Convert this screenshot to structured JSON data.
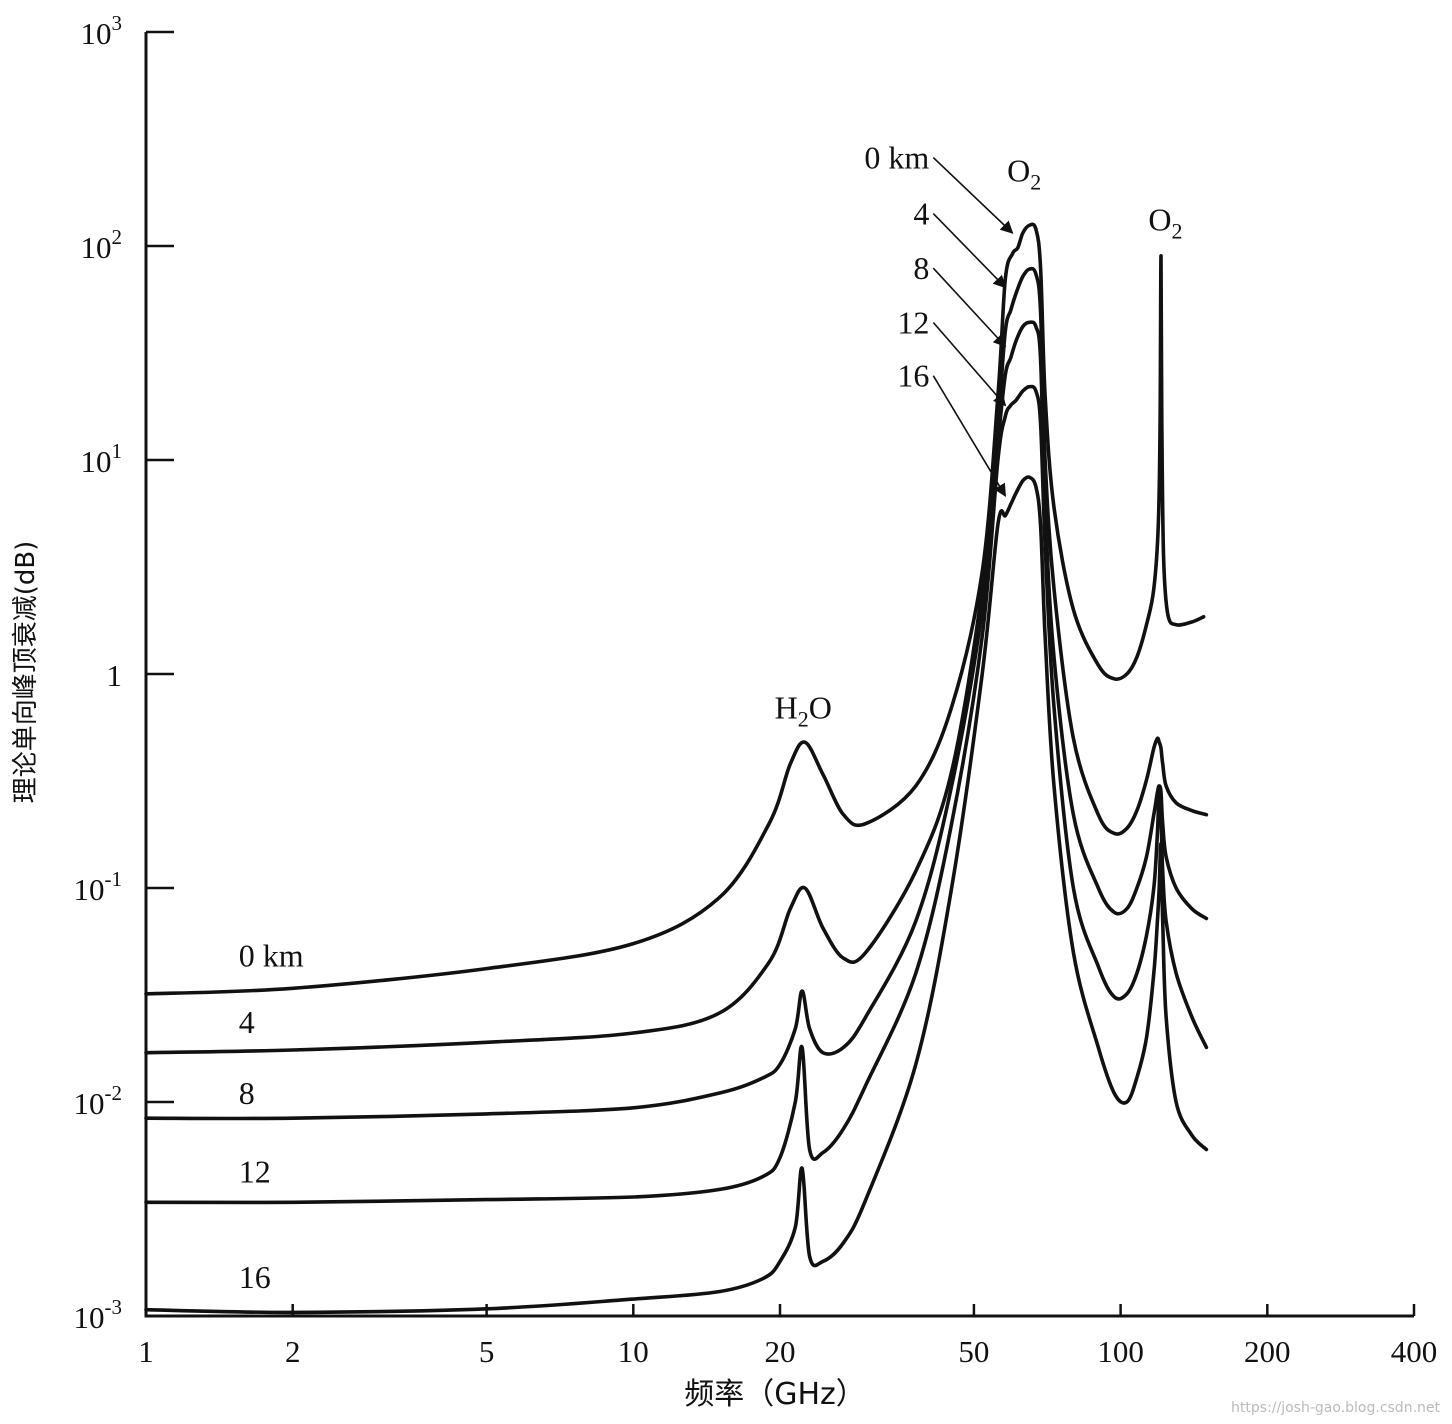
{
  "chart_data": {
    "type": "line",
    "xlabel": "频率（GHz）",
    "ylabel": "理论单向峰顶衰减(dB)",
    "xscale": "log",
    "yscale": "log",
    "xlim": [
      1,
      400
    ],
    "ylim": [
      0.001,
      1000
    ],
    "x_ticks": [
      {
        "value": 1,
        "label": "1"
      },
      {
        "value": 2,
        "label": "2"
      },
      {
        "value": 5,
        "label": "5"
      },
      {
        "value": 10,
        "label": "10"
      },
      {
        "value": 20,
        "label": "20"
      },
      {
        "value": 50,
        "label": "50"
      },
      {
        "value": 100,
        "label": "100"
      },
      {
        "value": 200,
        "label": "200"
      },
      {
        "value": 400,
        "label": "400"
      }
    ],
    "y_ticks": [
      {
        "value": 0.001,
        "base": "10",
        "exp": "-3"
      },
      {
        "value": 0.01,
        "base": "10",
        "exp": "-2"
      },
      {
        "value": 0.1,
        "base": "10",
        "exp": "-1"
      },
      {
        "value": 1,
        "base": "1",
        "exp": ""
      },
      {
        "value": 10,
        "base": "10",
        "exp": "1"
      },
      {
        "value": 100,
        "base": "10",
        "exp": "2"
      },
      {
        "value": 1000,
        "base": "10",
        "exp": "3"
      }
    ],
    "series": [
      {
        "name": "0 km",
        "points": [
          [
            1,
            0.032
          ],
          [
            2,
            0.034
          ],
          [
            5,
            0.042
          ],
          [
            10,
            0.055
          ],
          [
            15,
            0.09
          ],
          [
            19,
            0.2
          ],
          [
            21,
            0.38
          ],
          [
            22.5,
            0.48
          ],
          [
            24.5,
            0.34
          ],
          [
            27,
            0.22
          ],
          [
            30,
            0.2
          ],
          [
            38,
            0.3
          ],
          [
            45,
            0.7
          ],
          [
            52,
            3
          ],
          [
            56,
            20
          ],
          [
            58,
            70
          ],
          [
            60,
            92
          ],
          [
            61.5,
            98
          ],
          [
            63,
            115
          ],
          [
            65,
            125
          ],
          [
            67,
            120
          ],
          [
            68.5,
            80
          ],
          [
            70,
            20
          ],
          [
            73,
            6
          ],
          [
            80,
            2
          ],
          [
            90,
            1.1
          ],
          [
            97,
            0.95
          ],
          [
            103,
            1.0
          ],
          [
            108,
            1.2
          ],
          [
            113,
            1.7
          ],
          [
            117,
            2.5
          ],
          [
            119.5,
            5
          ],
          [
            120.5,
            15
          ],
          [
            121,
            90
          ],
          [
            121.5,
            15
          ],
          [
            122.5,
            3.5
          ],
          [
            125,
            1.9
          ],
          [
            130,
            1.7
          ],
          [
            140,
            1.75
          ],
          [
            148,
            1.85
          ]
        ]
      },
      {
        "name": "4",
        "points": [
          [
            1,
            0.017
          ],
          [
            2,
            0.0175
          ],
          [
            5,
            0.019
          ],
          [
            10,
            0.021
          ],
          [
            15,
            0.026
          ],
          [
            19,
            0.045
          ],
          [
            21,
            0.08
          ],
          [
            22.5,
            0.1
          ],
          [
            24.5,
            0.065
          ],
          [
            27,
            0.047
          ],
          [
            30,
            0.05
          ],
          [
            38,
            0.12
          ],
          [
            45,
            0.35
          ],
          [
            52,
            2.5
          ],
          [
            56,
            15
          ],
          [
            58,
            40
          ],
          [
            59.5,
            50
          ],
          [
            61,
            60
          ],
          [
            63,
            72
          ],
          [
            65,
            78
          ],
          [
            67,
            74
          ],
          [
            68.5,
            50
          ],
          [
            70,
            10
          ],
          [
            73,
            2.5
          ],
          [
            80,
            0.5
          ],
          [
            90,
            0.22
          ],
          [
            97,
            0.18
          ],
          [
            103,
            0.19
          ],
          [
            108,
            0.23
          ],
          [
            113,
            0.32
          ],
          [
            117,
            0.45
          ],
          [
            119,
            0.5
          ],
          [
            120,
            0.48
          ],
          [
            121,
            0.45
          ],
          [
            122,
            0.38
          ],
          [
            124,
            0.3
          ],
          [
            130,
            0.25
          ],
          [
            140,
            0.23
          ],
          [
            150,
            0.22
          ]
        ]
      },
      {
        "name": "8",
        "points": [
          [
            1,
            0.0084
          ],
          [
            2,
            0.0084
          ],
          [
            5,
            0.0088
          ],
          [
            10,
            0.0094
          ],
          [
            15,
            0.011
          ],
          [
            18.5,
            0.013
          ],
          [
            20,
            0.015
          ],
          [
            21.5,
            0.022
          ],
          [
            22.2,
            0.033
          ],
          [
            23,
            0.022
          ],
          [
            24.5,
            0.017
          ],
          [
            27,
            0.018
          ],
          [
            30,
            0.025
          ],
          [
            38,
            0.07
          ],
          [
            45,
            0.3
          ],
          [
            52,
            2
          ],
          [
            56,
            12
          ],
          [
            58,
            25
          ],
          [
            59.5,
            30
          ],
          [
            61,
            36
          ],
          [
            63,
            42
          ],
          [
            65,
            44
          ],
          [
            67,
            42
          ],
          [
            68.5,
            30
          ],
          [
            70,
            6
          ],
          [
            73,
            1.2
          ],
          [
            80,
            0.22
          ],
          [
            90,
            0.1
          ],
          [
            97,
            0.077
          ],
          [
            103,
            0.08
          ],
          [
            108,
            0.1
          ],
          [
            113,
            0.14
          ],
          [
            117,
            0.22
          ],
          [
            119,
            0.28
          ],
          [
            120,
            0.3
          ],
          [
            121,
            0.28
          ],
          [
            122,
            0.2
          ],
          [
            124,
            0.14
          ],
          [
            130,
            0.1
          ],
          [
            140,
            0.08
          ],
          [
            150,
            0.072
          ]
        ]
      },
      {
        "name": "12",
        "points": [
          [
            1,
            0.0034
          ],
          [
            2,
            0.0034
          ],
          [
            5,
            0.0035
          ],
          [
            10,
            0.0036
          ],
          [
            15,
            0.0039
          ],
          [
            18.5,
            0.0045
          ],
          [
            20,
            0.0055
          ],
          [
            21.5,
            0.01
          ],
          [
            22.2,
            0.018
          ],
          [
            23,
            0.006
          ],
          [
            24.5,
            0.0058
          ],
          [
            27,
            0.0075
          ],
          [
            30,
            0.012
          ],
          [
            38,
            0.04
          ],
          [
            45,
            0.2
          ],
          [
            52,
            1.5
          ],
          [
            56,
            10
          ],
          [
            58,
            16
          ],
          [
            59.5,
            18
          ],
          [
            61,
            19
          ],
          [
            63,
            21
          ],
          [
            65,
            22
          ],
          [
            67,
            21
          ],
          [
            68.5,
            15
          ],
          [
            70,
            4
          ],
          [
            73,
            0.7
          ],
          [
            80,
            0.1
          ],
          [
            90,
            0.043
          ],
          [
            97,
            0.031
          ],
          [
            103,
            0.032
          ],
          [
            108,
            0.04
          ],
          [
            113,
            0.06
          ],
          [
            117,
            0.1
          ],
          [
            119,
            0.18
          ],
          [
            120,
            0.28
          ],
          [
            121,
            0.22
          ],
          [
            122,
            0.12
          ],
          [
            124,
            0.07
          ],
          [
            130,
            0.04
          ],
          [
            140,
            0.025
          ],
          [
            150,
            0.018
          ]
        ]
      },
      {
        "name": "16",
        "points": [
          [
            1,
            0.00107
          ],
          [
            2,
            0.00104
          ],
          [
            5,
            0.00108
          ],
          [
            10,
            0.0012
          ],
          [
            15,
            0.0013
          ],
          [
            18.5,
            0.0015
          ],
          [
            20,
            0.0018
          ],
          [
            21.5,
            0.0026
          ],
          [
            22.2,
            0.0049
          ],
          [
            23,
            0.0019
          ],
          [
            24.5,
            0.0018
          ],
          [
            27,
            0.0022
          ],
          [
            30,
            0.0035
          ],
          [
            38,
            0.015
          ],
          [
            45,
            0.1
          ],
          [
            52,
            1
          ],
          [
            56,
            5
          ],
          [
            58,
            5.5
          ],
          [
            59.5,
            6.2
          ],
          [
            61,
            7
          ],
          [
            63,
            8
          ],
          [
            65,
            8.3
          ],
          [
            67,
            7.5
          ],
          [
            68.5,
            5
          ],
          [
            70,
            1.5
          ],
          [
            73,
            0.3
          ],
          [
            80,
            0.05
          ],
          [
            90,
            0.018
          ],
          [
            97,
            0.011
          ],
          [
            103,
            0.01
          ],
          [
            108,
            0.013
          ],
          [
            113,
            0.02
          ],
          [
            117,
            0.04
          ],
          [
            119,
            0.07
          ],
          [
            120,
            0.1
          ],
          [
            121,
            0.16
          ],
          [
            122,
            0.07
          ],
          [
            124,
            0.025
          ],
          [
            130,
            0.01
          ],
          [
            140,
            0.007
          ],
          [
            150,
            0.006
          ]
        ]
      }
    ],
    "left_labels": [
      {
        "text": "0 km",
        "x": 1.55,
        "y": 0.043
      },
      {
        "text": "4",
        "x": 1.55,
        "y": 0.021
      },
      {
        "text": "8",
        "x": 1.55,
        "y": 0.0098
      },
      {
        "text": "12",
        "x": 1.55,
        "y": 0.0042
      },
      {
        "text": "16",
        "x": 1.55,
        "y": 0.00135
      }
    ],
    "annotations": {
      "h2o": {
        "text": "H",
        "sub": "2",
        "text2": "O",
        "x": 19.5,
        "y": 0.62
      },
      "o2_60": {
        "text": "O",
        "sub": "2",
        "x": 58.5,
        "y": 200
      },
      "o2_118": {
        "text": "O",
        "sub": "2",
        "x": 114,
        "y": 118
      }
    },
    "peak_labels": [
      {
        "text": "0 km",
        "x": 40.5,
        "y": 230,
        "target_x": 60,
        "target_y": 115
      },
      {
        "text": "4",
        "x": 40.5,
        "y": 126,
        "target_x": 58,
        "target_y": 64
      },
      {
        "text": "8",
        "x": 40.5,
        "y": 70,
        "target_x": 58,
        "target_y": 34
      },
      {
        "text": "12",
        "x": 40.5,
        "y": 39,
        "target_x": 58,
        "target_y": 18
      },
      {
        "text": "16",
        "x": 40.5,
        "y": 22,
        "target_x": 58,
        "target_y": 6.8
      }
    ],
    "grid": false,
    "legend": "none"
  },
  "watermark": "https://josh-gao.blog.csdn.net"
}
